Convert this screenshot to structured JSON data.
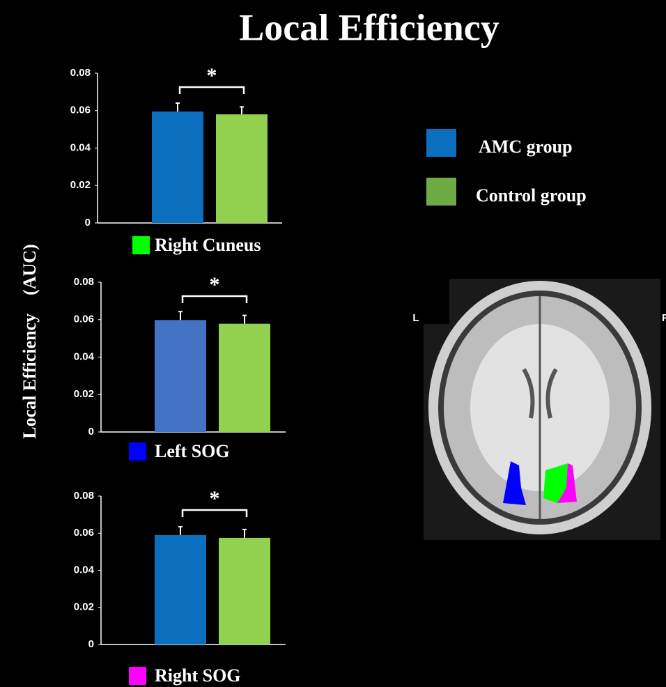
{
  "title": "Local Efficiency",
  "y_label": "Local Efficiency　(AUC)",
  "legend": [
    {
      "name": "AMC group",
      "color": "#0b6fc0"
    },
    {
      "name": "Control group",
      "color": "#6fab45"
    }
  ],
  "image_labels": {
    "left": "L",
    "right": "R"
  },
  "chart_data": [
    {
      "type": "bar",
      "region": "Right Cuneus",
      "region_color": "#00ff00",
      "significance": "*",
      "values": [
        0.0595,
        0.058
      ],
      "errors": [
        0.0045,
        0.004
      ],
      "colors": [
        "#0b6fc0",
        "#92d050"
      ],
      "ylim": [
        0,
        0.08
      ],
      "yticks": [
        0,
        0.02,
        0.04,
        0.06,
        0.08
      ]
    },
    {
      "type": "bar",
      "region": "Left SOG",
      "region_color": "#0000ff",
      "significance": "*",
      "values": [
        0.0598,
        0.0578
      ],
      "errors": [
        0.0045,
        0.0045
      ],
      "colors": [
        "#4472c4",
        "#92d050"
      ],
      "ylim": [
        0,
        0.08
      ],
      "yticks": [
        0,
        0.02,
        0.04,
        0.06,
        0.08
      ]
    },
    {
      "type": "bar",
      "region": "Right SOG",
      "region_color": "#ff00ff",
      "significance": "*",
      "values": [
        0.059,
        0.0575
      ],
      "errors": [
        0.0045,
        0.0045
      ],
      "colors": [
        "#0b6fc0",
        "#92d050"
      ],
      "ylim": [
        0,
        0.08
      ],
      "yticks": [
        0,
        0.02,
        0.04,
        0.06,
        0.08
      ]
    }
  ]
}
